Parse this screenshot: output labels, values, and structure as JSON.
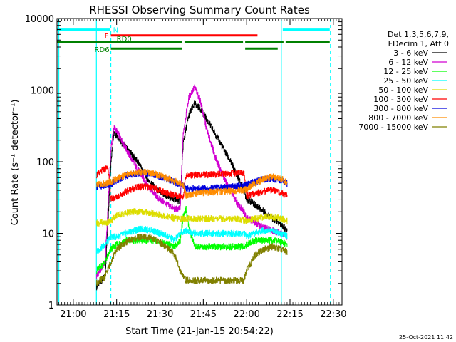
{
  "chart_data": {
    "type": "line",
    "title": "RHESSI Observing Summary Count Rates",
    "xlabel": "Start Time (21-Jan-15 20:54:22)",
    "ylabel": "Count Rate (s⁻¹ detector⁻¹)",
    "yscale": "log",
    "xlim": [
      "20:54:22",
      "22:33:00"
    ],
    "ylim": [
      1,
      10000
    ],
    "x_ticks": [
      "21:00",
      "21:15",
      "21:30",
      "21:45",
      "22:00",
      "22:15",
      "22:30"
    ],
    "y_ticks": [
      {
        "value": 1,
        "label": "1"
      },
      {
        "value": 10,
        "label": "10"
      },
      {
        "value": 100,
        "label": "100"
      },
      {
        "value": 1000,
        "label": "1000"
      },
      {
        "value": 10000,
        "label": "10000"
      }
    ],
    "footer_date": "25-Oct-2021 11:42",
    "legend": {
      "position": "top-right",
      "header": [
        "Det 1,3,5,6,7,9,",
        "FDecim 1, Att 0"
      ]
    },
    "series": [
      {
        "name": "3 - 6 keV",
        "color": "#000000",
        "points": [
          [
            "21:08",
            1.8
          ],
          [
            "21:11",
            2.5
          ],
          [
            "21:13",
            100
          ],
          [
            "21:14",
            250
          ],
          [
            "21:15",
            230
          ],
          [
            "21:17",
            180
          ],
          [
            "21:20",
            130
          ],
          [
            "21:23",
            90
          ],
          [
            "21:26",
            55
          ],
          [
            "21:29",
            40
          ],
          [
            "21:32",
            33
          ],
          [
            "21:35",
            30
          ],
          [
            "21:37",
            28
          ],
          [
            "21:38",
            180
          ],
          [
            "21:40",
            450
          ],
          [
            "21:42",
            650
          ],
          [
            "21:44",
            550
          ],
          [
            "21:46",
            400
          ],
          [
            "21:49",
            250
          ],
          [
            "21:52",
            150
          ],
          [
            "21:55",
            90
          ],
          [
            "21:57",
            60
          ],
          [
            "21:59",
            40
          ],
          [
            "22:00",
            30
          ],
          [
            "22:03",
            25
          ],
          [
            "22:06",
            20
          ],
          [
            "22:09",
            16
          ],
          [
            "22:12",
            13
          ],
          [
            "22:14",
            11
          ]
        ]
      },
      {
        "name": "6 - 12 keV",
        "color": "#d100d1",
        "points": [
          [
            "21:08",
            2.5
          ],
          [
            "21:11",
            4
          ],
          [
            "21:13",
            150
          ],
          [
            "21:14",
            300
          ],
          [
            "21:15",
            270
          ],
          [
            "21:17",
            190
          ],
          [
            "21:20",
            110
          ],
          [
            "21:23",
            70
          ],
          [
            "21:26",
            45
          ],
          [
            "21:29",
            32
          ],
          [
            "21:32",
            26
          ],
          [
            "21:35",
            22
          ],
          [
            "21:37",
            22
          ],
          [
            "21:38",
            250
          ],
          [
            "21:40",
            800
          ],
          [
            "21:42",
            1100
          ],
          [
            "21:44",
            700
          ],
          [
            "21:46",
            300
          ],
          [
            "21:49",
            120
          ],
          [
            "21:52",
            60
          ],
          [
            "21:55",
            35
          ],
          [
            "21:57",
            25
          ],
          [
            "21:59",
            20
          ],
          [
            "22:00",
            17
          ],
          [
            "22:03",
            14
          ],
          [
            "22:06",
            12
          ],
          [
            "22:09",
            11
          ],
          [
            "22:12",
            10
          ],
          [
            "22:14",
            9
          ]
        ]
      },
      {
        "name": "12 - 25 keV",
        "color": "#00ff00",
        "points": [
          [
            "21:08",
            3
          ],
          [
            "21:11",
            4
          ],
          [
            "21:13",
            6
          ],
          [
            "21:15",
            7
          ],
          [
            "21:18",
            8
          ],
          [
            "21:21",
            8
          ],
          [
            "21:24",
            8
          ],
          [
            "21:27",
            8
          ],
          [
            "21:30",
            7.5
          ],
          [
            "21:33",
            7
          ],
          [
            "21:35",
            6.5
          ],
          [
            "21:37",
            8
          ],
          [
            "21:38",
            17
          ],
          [
            "21:39",
            22
          ],
          [
            "21:40",
            12
          ],
          [
            "21:42",
            6.5
          ],
          [
            "21:45",
            6.5
          ],
          [
            "21:48",
            6.5
          ],
          [
            "21:51",
            6.5
          ],
          [
            "21:54",
            6.5
          ],
          [
            "21:57",
            6.5
          ],
          [
            "21:59",
            6.5
          ],
          [
            "22:00",
            7
          ],
          [
            "22:03",
            8
          ],
          [
            "22:06",
            8
          ],
          [
            "22:09",
            8
          ],
          [
            "22:12",
            7.5
          ],
          [
            "22:14",
            7
          ]
        ]
      },
      {
        "name": "25 - 50 keV",
        "color": "#00ffff",
        "points": [
          [
            "21:08",
            5.5
          ],
          [
            "21:11",
            7
          ],
          [
            "21:13",
            9
          ],
          [
            "21:15",
            9
          ],
          [
            "21:18",
            10
          ],
          [
            "21:21",
            11
          ],
          [
            "21:24",
            11.5
          ],
          [
            "21:27",
            11
          ],
          [
            "21:30",
            10
          ],
          [
            "21:33",
            9
          ],
          [
            "21:35",
            8
          ],
          [
            "21:37",
            10
          ],
          [
            "21:39",
            11
          ],
          [
            "21:42",
            10
          ],
          [
            "21:45",
            10
          ],
          [
            "21:48",
            10
          ],
          [
            "21:51",
            10
          ],
          [
            "21:54",
            10
          ],
          [
            "21:57",
            10
          ],
          [
            "21:59",
            10
          ],
          [
            "22:00",
            9
          ],
          [
            "22:03",
            10
          ],
          [
            "22:06",
            11
          ],
          [
            "22:09",
            11
          ],
          [
            "22:12",
            10
          ],
          [
            "22:14",
            9
          ]
        ]
      },
      {
        "name": "50 - 100 keV",
        "color": "#dddd00",
        "points": [
          [
            "21:08",
            14
          ],
          [
            "21:11",
            14
          ],
          [
            "21:13",
            15
          ],
          [
            "21:15",
            18
          ],
          [
            "21:18",
            19
          ],
          [
            "21:21",
            20
          ],
          [
            "21:24",
            20
          ],
          [
            "21:27",
            19
          ],
          [
            "21:30",
            18
          ],
          [
            "21:33",
            17
          ],
          [
            "21:36",
            16
          ],
          [
            "21:39",
            16
          ],
          [
            "21:42",
            16
          ],
          [
            "21:45",
            16
          ],
          [
            "21:48",
            16
          ],
          [
            "21:51",
            16
          ],
          [
            "21:54",
            16
          ],
          [
            "21:57",
            16
          ],
          [
            "22:00",
            15
          ],
          [
            "22:03",
            16
          ],
          [
            "22:06",
            17
          ],
          [
            "22:09",
            17
          ],
          [
            "22:12",
            16
          ],
          [
            "22:14",
            15
          ]
        ]
      },
      {
        "name": "100 - 300 keV",
        "color": "#ff0000",
        "points": [
          [
            "21:08",
            65
          ],
          [
            "21:11",
            80
          ],
          [
            "21:12",
            85
          ],
          [
            "21:13",
            30
          ],
          [
            "21:15",
            32
          ],
          [
            "21:18",
            38
          ],
          [
            "21:21",
            43
          ],
          [
            "21:24",
            45
          ],
          [
            "21:27",
            44
          ],
          [
            "21:30",
            40
          ],
          [
            "21:33",
            36
          ],
          [
            "21:36",
            33
          ],
          [
            "21:38",
            32
          ],
          [
            "21:39",
            65
          ],
          [
            "21:42",
            65
          ],
          [
            "21:45",
            66
          ],
          [
            "21:48",
            66
          ],
          [
            "21:51",
            67
          ],
          [
            "21:54",
            68
          ],
          [
            "21:57",
            70
          ],
          [
            "21:59",
            70
          ],
          [
            "22:00",
            33
          ],
          [
            "22:03",
            36
          ],
          [
            "22:06",
            39
          ],
          [
            "22:09",
            40
          ],
          [
            "22:12",
            37
          ],
          [
            "22:14",
            33
          ]
        ]
      },
      {
        "name": "300 - 800 keV",
        "color": "#0000dd",
        "points": [
          [
            "21:08",
            45
          ],
          [
            "21:11",
            46
          ],
          [
            "21:13",
            48
          ],
          [
            "21:15",
            55
          ],
          [
            "21:18",
            63
          ],
          [
            "21:21",
            68
          ],
          [
            "21:24",
            70
          ],
          [
            "21:27",
            68
          ],
          [
            "21:30",
            62
          ],
          [
            "21:33",
            56
          ],
          [
            "21:36",
            50
          ],
          [
            "21:38",
            47
          ],
          [
            "21:39",
            42
          ],
          [
            "21:42",
            42
          ],
          [
            "21:45",
            43
          ],
          [
            "21:48",
            43
          ],
          [
            "21:51",
            44
          ],
          [
            "21:54",
            45
          ],
          [
            "21:57",
            46
          ],
          [
            "21:59",
            47
          ],
          [
            "22:00",
            48
          ],
          [
            "22:03",
            53
          ],
          [
            "22:06",
            57
          ],
          [
            "22:09",
            58
          ],
          [
            "22:12",
            55
          ],
          [
            "22:14",
            50
          ]
        ]
      },
      {
        "name": "800 - 7000 keV",
        "color": "#ff8c00",
        "points": [
          [
            "21:08",
            48
          ],
          [
            "21:11",
            50
          ],
          [
            "21:13",
            53
          ],
          [
            "21:15",
            58
          ],
          [
            "21:18",
            65
          ],
          [
            "21:21",
            70
          ],
          [
            "21:24",
            72
          ],
          [
            "21:27",
            70
          ],
          [
            "21:30",
            64
          ],
          [
            "21:33",
            58
          ],
          [
            "21:36",
            52
          ],
          [
            "21:38",
            48
          ],
          [
            "21:39",
            34
          ],
          [
            "21:42",
            36
          ],
          [
            "21:45",
            37
          ],
          [
            "21:48",
            38
          ],
          [
            "21:51",
            38
          ],
          [
            "21:54",
            39
          ],
          [
            "21:57",
            40
          ],
          [
            "21:59",
            40
          ],
          [
            "22:00",
            42
          ],
          [
            "22:03",
            50
          ],
          [
            "22:06",
            58
          ],
          [
            "22:09",
            62
          ],
          [
            "22:12",
            58
          ],
          [
            "22:14",
            50
          ]
        ]
      },
      {
        "name": "7000 - 15000 keV",
        "color": "#808000",
        "points": [
          [
            "21:08",
            2
          ],
          [
            "21:11",
            2.5
          ],
          [
            "21:13",
            4
          ],
          [
            "21:15",
            6
          ],
          [
            "21:18",
            7.5
          ],
          [
            "21:21",
            8.5
          ],
          [
            "21:24",
            9
          ],
          [
            "21:27",
            8.5
          ],
          [
            "21:30",
            7.5
          ],
          [
            "21:33",
            6
          ],
          [
            "21:35",
            5
          ],
          [
            "21:37",
            3
          ],
          [
            "21:39",
            2.2
          ],
          [
            "21:42",
            2.2
          ],
          [
            "21:45",
            2.2
          ],
          [
            "21:48",
            2.2
          ],
          [
            "21:51",
            2.2
          ],
          [
            "21:54",
            2.2
          ],
          [
            "21:57",
            2.2
          ],
          [
            "21:59",
            2.2
          ],
          [
            "22:00",
            3
          ],
          [
            "22:03",
            5
          ],
          [
            "22:06",
            6
          ],
          [
            "22:09",
            6.5
          ],
          [
            "22:12",
            6
          ],
          [
            "22:14",
            5.5
          ]
        ]
      }
    ],
    "status_bars": [
      {
        "label": "N",
        "color": "#00ffff",
        "value": 7000,
        "segments": [
          [
            "20:54:22",
            "21:13"
          ],
          [
            "22:12",
            "22:29"
          ]
        ]
      },
      {
        "label": "F",
        "color": "#ff0000",
        "value": 5800,
        "segments": [
          [
            "21:13",
            "22:04"
          ]
        ]
      },
      {
        "label": "RD0",
        "color": "#008000",
        "value": 4700,
        "segments": [
          [
            "20:54:22",
            "21:38"
          ],
          [
            "21:38",
            "21:59"
          ],
          [
            "21:59",
            "22:13"
          ],
          [
            "22:13",
            "22:29"
          ]
        ]
      },
      {
        "label": "RD6",
        "color": "#008000",
        "value": 3800,
        "segments": [
          [
            "21:13",
            "21:38"
          ],
          [
            "21:59",
            "22:11"
          ]
        ]
      }
    ],
    "vlines": [
      {
        "time": "20:55",
        "color": "#00ffff",
        "style": "solid"
      },
      {
        "time": "21:08",
        "color": "#00ffff",
        "style": "solid"
      },
      {
        "time": "21:13",
        "color": "#00ffff",
        "style": "dashed"
      },
      {
        "time": "22:12",
        "color": "#00ffff",
        "style": "solid"
      },
      {
        "time": "22:29",
        "color": "#00ffff",
        "style": "dashed"
      }
    ]
  }
}
